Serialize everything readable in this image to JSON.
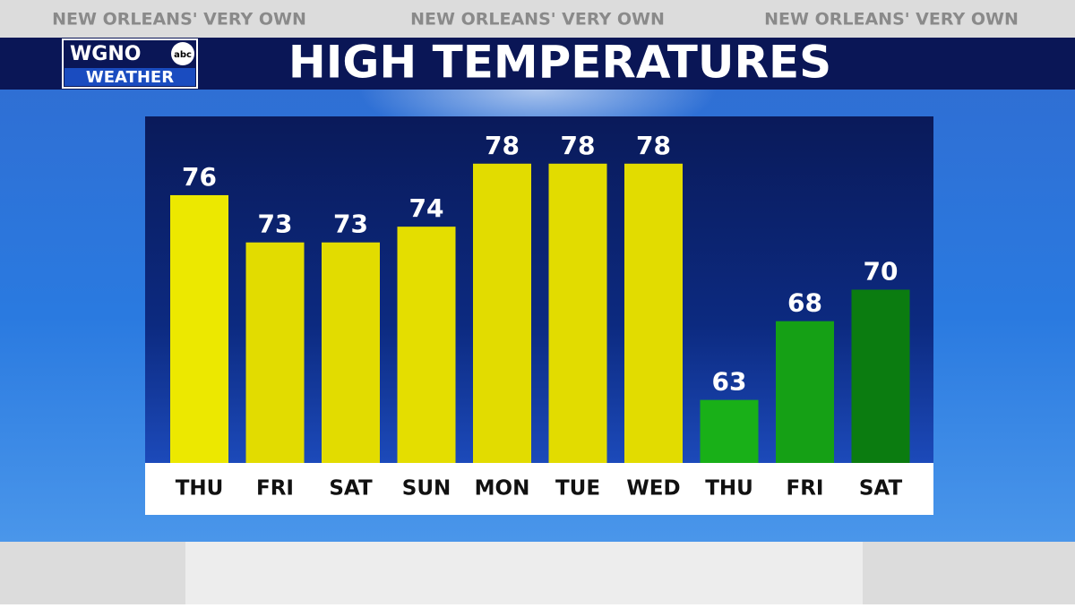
{
  "header": {
    "tagline": [
      "NEW ORLEANS' VERY OWN",
      "NEW ORLEANS' VERY OWN",
      "NEW ORLEANS' VERY OWN"
    ],
    "logo_top": "WGNO",
    "logo_badge": "abc",
    "logo_bottom": "WEATHER"
  },
  "chart_data": {
    "type": "bar",
    "title": "HIGH TEMPERATURES",
    "categories": [
      "THU",
      "FRI",
      "SAT",
      "SUN",
      "MON",
      "TUE",
      "WED",
      "THU",
      "FRI",
      "SAT"
    ],
    "values": [
      76,
      73,
      73,
      74,
      78,
      78,
      78,
      63,
      68,
      70
    ],
    "colors": [
      "#ece800",
      "#e2dc00",
      "#e2dc00",
      "#e4de00",
      "#e2dc00",
      "#e2dc00",
      "#e2dc00",
      "#19b018",
      "#15a015",
      "#0b7c10"
    ],
    "ylim": [
      59,
      81
    ]
  }
}
